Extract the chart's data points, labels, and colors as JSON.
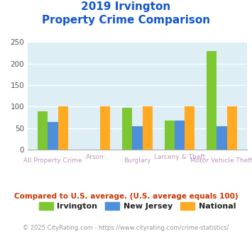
{
  "title_line1": "2019 Irvington",
  "title_line2": "Property Crime Comparison",
  "categories": [
    "All Property Crime",
    "Arson",
    "Burglary",
    "Larceny & Theft",
    "Motor Vehicle Theft"
  ],
  "irvington": [
    90,
    0,
    98,
    68,
    230
  ],
  "new_jersey": [
    65,
    0,
    54,
    68,
    54
  ],
  "national": [
    100,
    100,
    100,
    100,
    100
  ],
  "irvington_color": "#7dc832",
  "nj_color": "#4d8fdb",
  "national_color": "#ffaa22",
  "bg_color": "#ddeef5",
  "title_color": "#1155cc",
  "xlabel_color": "#bb99bb",
  "note_color": "#cc3300",
  "footer_color": "#999999",
  "ylim": [
    0,
    250
  ],
  "yticks": [
    0,
    50,
    100,
    150,
    200,
    250
  ],
  "note_text": "Compared to U.S. average. (U.S. average equals 100)",
  "footer_text": "© 2025 CityRating.com - https://www.cityrating.com/crime-statistics/",
  "legend_labels": [
    "Irvington",
    "New Jersey",
    "National"
  ]
}
